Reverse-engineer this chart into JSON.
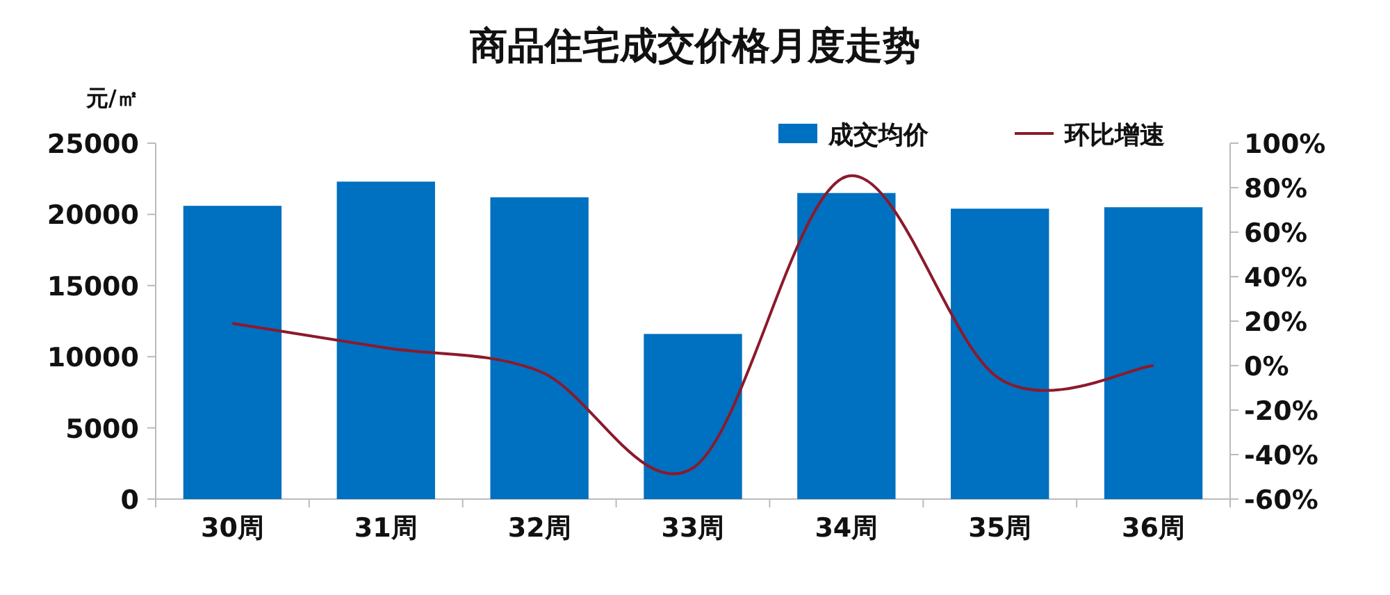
{
  "chart_data": {
    "type": "bar",
    "title": "商品住宅成交价格月度走势",
    "ylabel": "元/㎡",
    "categories": [
      "30周",
      "31周",
      "32周",
      "33周",
      "34周",
      "35周",
      "36周"
    ],
    "series": [
      {
        "name": "成交均价",
        "color": "#0070c0",
        "values": [
          20600,
          22300,
          21200,
          11600,
          21500,
          20400,
          20500
        ]
      },
      {
        "name": "环比增速",
        "type": "line",
        "axis": "y2",
        "color": "#8b1a2b",
        "values": [
          19,
          8,
          -2.5,
          -46,
          85,
          -6,
          0
        ]
      }
    ],
    "ylim": [
      0,
      25000
    ],
    "yticks": [
      0,
      5000,
      10000,
      15000,
      20000,
      25000
    ],
    "y2lim": [
      -60,
      100
    ],
    "y2ticks": [
      {
        "value": -60,
        "label": "-60%"
      },
      {
        "value": -40,
        "label": "-40%"
      },
      {
        "value": -20,
        "label": "-20%"
      },
      {
        "value": 0,
        "label": "0%"
      },
      {
        "value": 20,
        "label": "20%"
      },
      {
        "value": 40,
        "label": "40%"
      },
      {
        "value": 60,
        "label": "60%"
      },
      {
        "value": 80,
        "label": "80%"
      },
      {
        "value": 100,
        "label": "100%"
      }
    ],
    "legend": "top right",
    "grid": false,
    "marker": "none",
    "line_style": "solid"
  }
}
